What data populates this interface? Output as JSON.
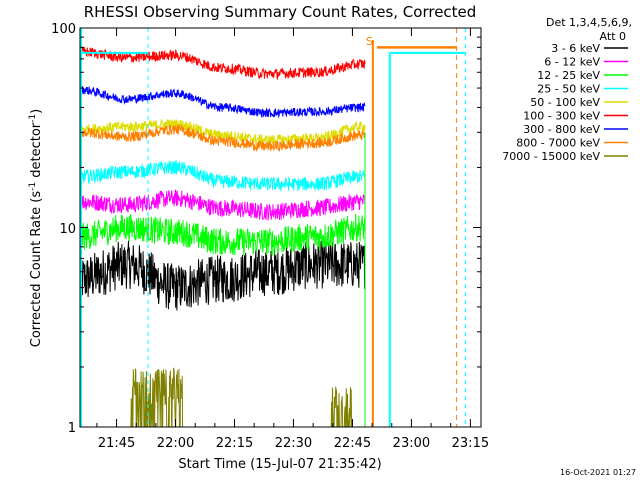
{
  "chart_data": {
    "type": "line",
    "title": "RHESSI Observing Summary Count Rates, Corrected",
    "xlabel": "Start Time (15-Jul-07 21:35:42)",
    "ylabel_main": "Corrected Count Rate (s",
    "ylabel_sup1": "-1",
    "ylabel_mid": " detector",
    "ylabel_sup2": "-1",
    "ylabel_end": ")",
    "y_scale": "log",
    "ylim": [
      1,
      100
    ],
    "y_ticks": [
      "1",
      "10",
      "100"
    ],
    "x_range_minutes": [
      0,
      102
    ],
    "x_ticks": [
      {
        "label": "21:45",
        "t": 9.3
      },
      {
        "label": "22:00",
        "t": 24.3
      },
      {
        "label": "22:15",
        "t": 39.3
      },
      {
        "label": "22:30",
        "t": 54.3
      },
      {
        "label": "22:45",
        "t": 69.3
      },
      {
        "label": "23:00",
        "t": 84.3
      },
      {
        "label": "23:15",
        "t": 99.3
      }
    ],
    "legend_header": [
      "Det 1,3,4,5,6,9,",
      "Att 0"
    ],
    "legend_position": "right",
    "series": [
      {
        "name": "3 - 6 keV",
        "color": "#000000",
        "levels": [
          5.5,
          6.5,
          5.0,
          5.5,
          6.0,
          6.5,
          6.5
        ]
      },
      {
        "name": "6 - 12 keV",
        "color": "#ff00ff",
        "levels": [
          13.5,
          13.0,
          14.0,
          12.5,
          12.0,
          12.5,
          13.5
        ]
      },
      {
        "name": "12 - 25 keV",
        "color": "#00ff00",
        "levels": [
          9.0,
          10.0,
          9.5,
          8.5,
          8.5,
          9.0,
          10.0
        ]
      },
      {
        "name": "25 - 50 keV",
        "color": "#00ffff",
        "levels": [
          18.0,
          19.0,
          20.0,
          17.0,
          16.5,
          16.5,
          18.0
        ]
      },
      {
        "name": "50 - 100 keV",
        "color": "#dddd00",
        "levels": [
          31.0,
          32.0,
          33.0,
          29.0,
          27.5,
          28.0,
          32.0
        ]
      },
      {
        "name": "100 - 300 keV",
        "color": "#ff0000",
        "levels": [
          76.0,
          71.0,
          73.0,
          63.0,
          59.0,
          60.0,
          66.0
        ]
      },
      {
        "name": "300 - 800 keV",
        "color": "#0000ff",
        "levels": [
          49.0,
          44.0,
          47.0,
          40.0,
          37.5,
          38.0,
          40.0
        ]
      },
      {
        "name": "800 - 7000 keV",
        "color": "#ff8000",
        "levels": [
          30.0,
          28.5,
          31.0,
          27.0,
          25.5,
          26.5,
          29.0
        ]
      },
      {
        "name": "7000 - 15000 keV",
        "color": "#808000",
        "levels": [
          1.0,
          1.4,
          1.3,
          1.0,
          1.0,
          1.0,
          1.2
        ]
      }
    ],
    "level_times_minutes": [
      0,
      12,
      24,
      36,
      48,
      60,
      72
    ],
    "data_end_minute": 72.5,
    "attenuator_marker": "S",
    "saa_level": 80,
    "night_level": 75
  },
  "footer_date": "16-Oct-2021 01:27"
}
